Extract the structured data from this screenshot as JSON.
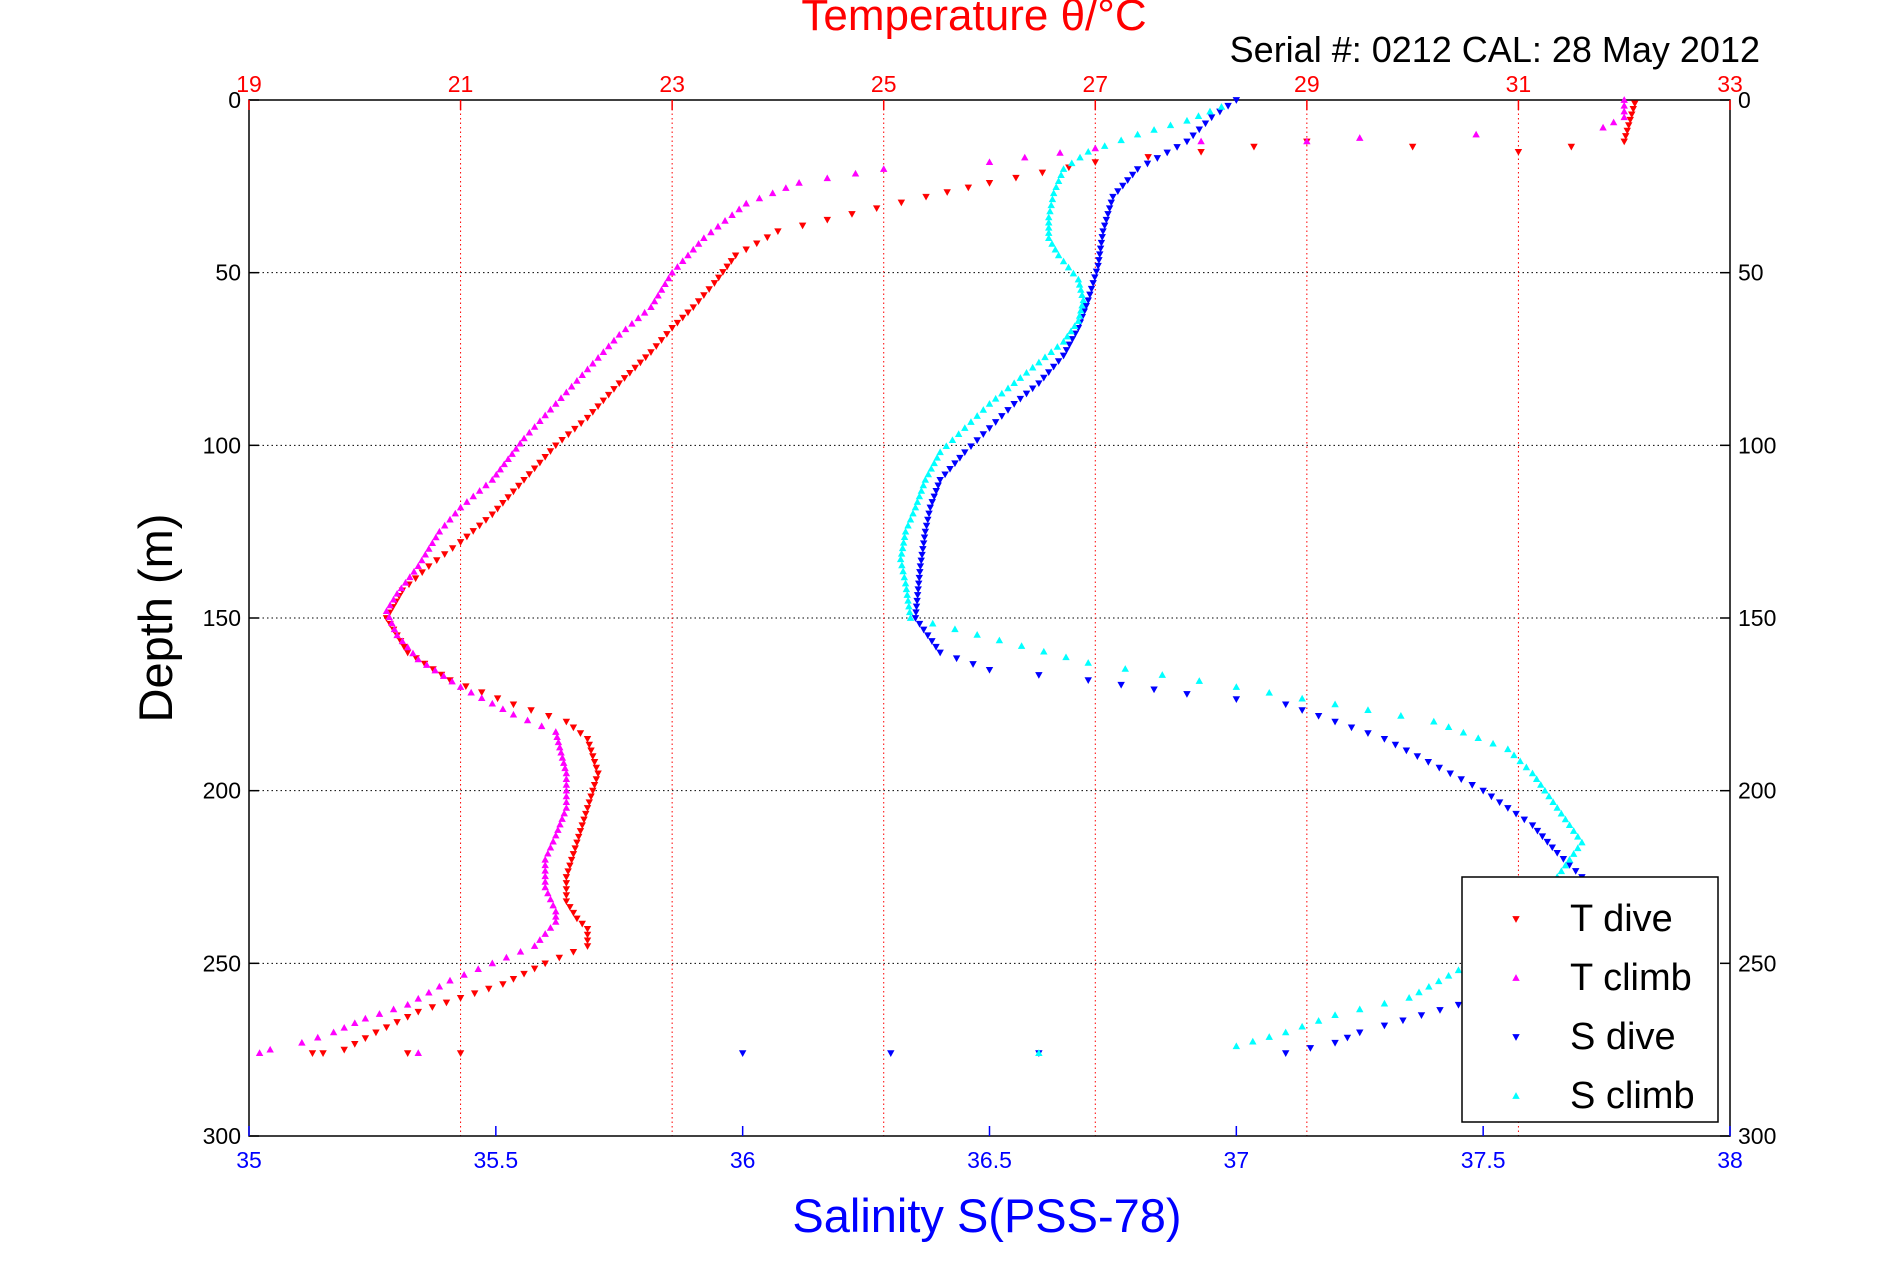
{
  "colors": {
    "temperature_axis": "#ff0000",
    "salinity_axis": "#0000ff",
    "t_dive": "#ff0000",
    "t_climb": "#ff00ff",
    "s_dive": "#0000ff",
    "s_climb": "#00ffff"
  },
  "header": {
    "title": "Temperature θ/°C",
    "serial_line": "Serial #: 0212  CAL: 28 May 2012"
  },
  "chart_data": {
    "type": "scatter",
    "title": "Temperature θ/°C",
    "xlabel": "Salinity S(PSS-78)",
    "ylabel": "Depth (m)",
    "x_top_label": "Temperature θ/°C",
    "x_bottom_label": "Salinity S(PSS-78)",
    "ylim": [
      0,
      300
    ],
    "y_reversed": true,
    "xlim_top": [
      19,
      33
    ],
    "xlim_bottom": [
      35,
      38
    ],
    "y_ticks": [
      "0",
      "50",
      "100",
      "150",
      "200",
      "250",
      "300"
    ],
    "y_tick_values": [
      0,
      50,
      100,
      150,
      200,
      250,
      300
    ],
    "x_top_ticks": [
      "19",
      "21",
      "23",
      "25",
      "27",
      "29",
      "31",
      "33"
    ],
    "x_top_tick_values": [
      19,
      21,
      23,
      25,
      27,
      29,
      31,
      33
    ],
    "x_bottom_ticks": [
      "35",
      "35.5",
      "36",
      "36.5",
      "37",
      "37.5",
      "38"
    ],
    "x_bottom_tick_values": [
      35,
      35.5,
      36,
      36.5,
      37,
      37.5,
      38
    ],
    "grid": true,
    "legend_position": "bottom-right",
    "series": [
      {
        "name": "T dive",
        "axis": "top",
        "marker": "triangle-down",
        "color": "#ff0000",
        "x": [
          32.1,
          32.0,
          31.0,
          29.0,
          28.0,
          27.0,
          26.0,
          25.4,
          24.7,
          24.0,
          23.6,
          23.4,
          23.2,
          23.0,
          22.8,
          22.5,
          22.2,
          21.9,
          21.6,
          21.3,
          21.0,
          20.7,
          20.45,
          20.3,
          20.5,
          20.9,
          21.5,
          22.0,
          22.2,
          22.3,
          22.2,
          22.1,
          22.0,
          22.0,
          22.1,
          22.2,
          22.2,
          21.8,
          21.4,
          21.0,
          20.6,
          20.2,
          19.9,
          19.7,
          19.6,
          20.5,
          21.0
        ],
        "y": [
          1,
          12,
          15,
          12,
          15,
          18,
          24,
          28,
          33,
          38,
          45,
          53,
          60,
          66,
          73,
          82,
          92,
          100,
          110,
          120,
          128,
          135,
          142,
          150,
          160,
          168,
          175,
          180,
          185,
          195,
          205,
          215,
          225,
          232,
          237,
          240,
          245,
          250,
          256,
          260,
          264,
          270,
          275,
          276,
          276,
          276,
          276
        ]
      },
      {
        "name": "T climb",
        "axis": "top",
        "marker": "triangle-up",
        "color": "#ff00ff",
        "x": [
          32.0,
          32.0,
          31.8,
          30.6,
          29.5,
          29.0,
          28.0,
          27.0,
          26.0,
          25.0,
          24.2,
          23.7,
          23.3,
          23.0,
          22.8,
          22.5,
          22.2,
          21.9,
          21.6,
          21.3,
          21.0,
          20.8,
          20.6,
          20.4,
          20.3,
          20.4,
          20.6,
          21.0,
          21.5,
          21.9,
          22.0,
          22.0,
          21.9,
          21.8,
          21.8,
          21.9,
          21.9,
          21.7,
          21.3,
          20.9,
          20.5,
          20.1,
          19.8,
          19.5,
          19.2,
          19.1,
          20.6
        ],
        "y": [
          0,
          5,
          8,
          10,
          11,
          12,
          12,
          14,
          18,
          20,
          24,
          30,
          40,
          50,
          60,
          68,
          78,
          88,
          98,
          110,
          118,
          125,
          135,
          143,
          148,
          155,
          162,
          170,
          178,
          183,
          195,
          205,
          213,
          220,
          228,
          235,
          238,
          245,
          250,
          255,
          262,
          266,
          270,
          273,
          275,
          276,
          276
        ]
      },
      {
        "name": "S dive",
        "axis": "bottom",
        "marker": "triangle-down",
        "color": "#0000ff",
        "x": [
          37.0,
          36.95,
          36.9,
          36.8,
          36.75,
          36.73,
          36.72,
          36.7,
          36.68,
          36.65,
          36.6,
          36.55,
          36.5,
          36.45,
          36.4,
          36.38,
          36.37,
          36.36,
          36.35,
          36.4,
          36.5,
          36.7,
          36.9,
          37.1,
          37.3,
          37.5,
          37.6,
          37.65,
          37.7,
          37.7,
          37.6,
          37.45,
          37.3,
          37.25,
          37.2,
          37.1,
          36.6,
          36.3,
          36.0
        ],
        "y": [
          0,
          5,
          12,
          20,
          28,
          38,
          48,
          58,
          66,
          74,
          82,
          88,
          95,
          102,
          110,
          118,
          125,
          135,
          150,
          160,
          165,
          168,
          172,
          175,
          185,
          200,
          210,
          218,
          225,
          235,
          250,
          262,
          268,
          270,
          273,
          276,
          276,
          276,
          276
        ]
      },
      {
        "name": "S climb",
        "axis": "bottom",
        "marker": "triangle-up",
        "color": "#00ffff",
        "x": [
          36.97,
          36.9,
          36.8,
          36.7,
          36.65,
          36.63,
          36.62,
          36.62,
          36.64,
          36.68,
          36.69,
          36.68,
          36.65,
          36.6,
          36.55,
          36.5,
          36.45,
          36.4,
          36.37,
          36.35,
          36.33,
          36.32,
          36.33,
          36.34,
          36.7,
          37.0,
          37.2,
          37.4,
          37.55,
          37.6,
          37.65,
          37.7,
          37.65,
          37.55,
          37.45,
          37.35,
          37.2,
          37.1,
          37.0,
          36.6
        ],
        "y": [
          2,
          6,
          10,
          15,
          20,
          27,
          34,
          40,
          45,
          52,
          58,
          64,
          70,
          76,
          82,
          88,
          95,
          102,
          110,
          118,
          125,
          133,
          140,
          150,
          163,
          170,
          175,
          180,
          188,
          195,
          205,
          215,
          225,
          240,
          252,
          260,
          265,
          270,
          274,
          276
        ]
      }
    ]
  },
  "legend": {
    "items": [
      "T dive",
      "T climb",
      "S dive",
      "S climb"
    ]
  }
}
